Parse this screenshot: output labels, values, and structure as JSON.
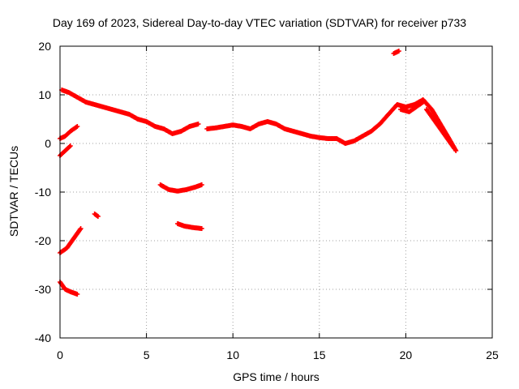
{
  "chart_data": {
    "type": "scatter",
    "title": "Day 169 of 2023, Sidereal Day-to-day VTEC variation (SDTVAR) for receiver p733",
    "xlabel": "GPS time / hours",
    "ylabel": "SDTVAR / TECUs",
    "xlim": [
      0,
      25
    ],
    "ylim": [
      -40,
      20
    ],
    "xticks": [
      0,
      5,
      10,
      15,
      20,
      25
    ],
    "yticks": [
      -40,
      -30,
      -20,
      -10,
      0,
      10,
      20
    ],
    "grid": true,
    "marker": "+",
    "color": "#ff0000",
    "series": [
      {
        "name": "arc-main-1",
        "points": [
          [
            0.1,
            11
          ],
          [
            0.5,
            10.5
          ],
          [
            1,
            9.5
          ],
          [
            1.5,
            8.5
          ],
          [
            2,
            8
          ],
          [
            2.5,
            7.5
          ],
          [
            3,
            7
          ],
          [
            3.5,
            6.5
          ],
          [
            4,
            6
          ],
          [
            4.5,
            5
          ],
          [
            5,
            4.5
          ],
          [
            5.5,
            3.5
          ],
          [
            6,
            3
          ],
          [
            6.5,
            2
          ],
          [
            7,
            2.5
          ],
          [
            7.5,
            3.5
          ],
          [
            8,
            4
          ]
        ]
      },
      {
        "name": "arc-main-2",
        "points": [
          [
            8.5,
            3
          ],
          [
            9,
            3.2
          ],
          [
            9.5,
            3.5
          ],
          [
            10,
            3.8
          ],
          [
            10.5,
            3.5
          ],
          [
            11,
            3
          ],
          [
            11.5,
            4
          ],
          [
            12,
            4.5
          ],
          [
            12.5,
            4
          ],
          [
            13,
            3
          ],
          [
            13.5,
            2.5
          ],
          [
            14,
            2
          ],
          [
            14.5,
            1.5
          ],
          [
            15,
            1.2
          ],
          [
            15.5,
            1
          ],
          [
            16,
            1
          ],
          [
            16.5,
            0
          ],
          [
            17,
            0.5
          ],
          [
            17.5,
            1.5
          ],
          [
            18,
            2.5
          ],
          [
            18.5,
            4
          ],
          [
            19,
            6
          ],
          [
            19.5,
            8
          ],
          [
            20,
            7.5
          ],
          [
            20.5,
            8
          ],
          [
            21,
            9
          ],
          [
            21.5,
            7
          ],
          [
            22,
            4
          ],
          [
            22.5,
            1
          ],
          [
            22.9,
            -1.5
          ]
        ]
      },
      {
        "name": "arc-rise",
        "points": [
          [
            0,
            1
          ],
          [
            0.3,
            1.5
          ],
          [
            0.6,
            2.5
          ],
          [
            1,
            3.5
          ]
        ]
      },
      {
        "name": "arc-short",
        "points": [
          [
            0,
            -2.5
          ],
          [
            0.3,
            -1.5
          ],
          [
            0.6,
            -0.5
          ]
        ]
      },
      {
        "name": "arc-minus22",
        "points": [
          [
            0,
            -22.5
          ],
          [
            0.4,
            -21.5
          ],
          [
            0.8,
            -19.5
          ],
          [
            1.2,
            -17.5
          ]
        ]
      },
      {
        "name": "arc-minus30",
        "points": [
          [
            0,
            -28.5
          ],
          [
            0.3,
            -30
          ],
          [
            0.6,
            -30.5
          ],
          [
            1,
            -31
          ]
        ]
      },
      {
        "name": "arc-minus14",
        "points": [
          [
            2,
            -14.5
          ],
          [
            2.2,
            -15
          ]
        ]
      },
      {
        "name": "arc-minus9",
        "points": [
          [
            5.8,
            -8.5
          ],
          [
            6.3,
            -9.5
          ],
          [
            6.8,
            -9.8
          ],
          [
            7.3,
            -9.5
          ],
          [
            7.8,
            -9
          ],
          [
            8.2,
            -8.5
          ]
        ]
      },
      {
        "name": "arc-minus17",
        "points": [
          [
            6.8,
            -16.5
          ],
          [
            7.2,
            -17
          ],
          [
            7.7,
            -17.3
          ],
          [
            8.2,
            -17.5
          ]
        ]
      },
      {
        "name": "arc-high",
        "points": [
          [
            19.3,
            18.5
          ],
          [
            19.6,
            19
          ]
        ]
      },
      {
        "name": "arc-drop",
        "points": [
          [
            21.2,
            7
          ],
          [
            21.6,
            5
          ],
          [
            22,
            3
          ],
          [
            22.4,
            1
          ],
          [
            22.8,
            -1
          ]
        ]
      },
      {
        "name": "arc-late",
        "points": [
          [
            19.7,
            7
          ],
          [
            20.2,
            6.5
          ],
          [
            20.6,
            7.5
          ],
          [
            21,
            8.5
          ]
        ]
      }
    ]
  }
}
